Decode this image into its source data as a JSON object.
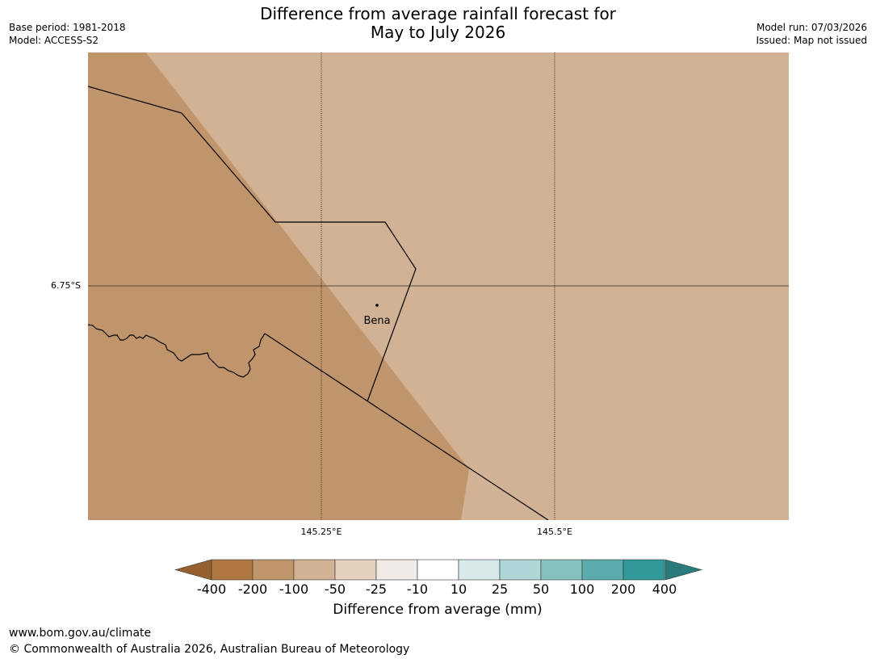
{
  "header": {
    "title_line1": "Difference from average rainfall forecast for",
    "title_line2": "May to July 2026",
    "base_period": "Base period: 1981-2018",
    "model": "Model: ACCESS-S2",
    "model_run": "Model run: 07/03/2026",
    "issued": "Issued: Map not issued"
  },
  "map": {
    "latitude_label": "6.75°S",
    "longitude_labels": [
      "145.25°E",
      "145.5°E"
    ],
    "place_name": "Bena",
    "regions": [
      {
        "category": "-200 to -100",
        "color": "#c0956b"
      },
      {
        "category": "-100 to -50",
        "color": "#d1b294"
      }
    ]
  },
  "colorbar": {
    "ticks": [
      "-400",
      "-200",
      "-100",
      "-50",
      "-25",
      "-10",
      "10",
      "25",
      "50",
      "100",
      "200",
      "400"
    ],
    "low_extend_color": "#96612f",
    "high_extend_color": "#2a7b7b",
    "colors": [
      "#ad773f",
      "#c0956b",
      "#d1b294",
      "#e3d1bf",
      "#efebe7",
      "#ffffff",
      "#d7e9e9",
      "#aed6d6",
      "#86c3c0",
      "#5aacad",
      "#31999a"
    ],
    "label": "Difference from average (mm)"
  },
  "footer": {
    "url": "www.bom.gov.au/climate",
    "copyright": "© Commonwealth of Australia 2026, Australian Bureau of Meteorology"
  }
}
